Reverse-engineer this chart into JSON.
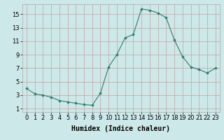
{
  "x": [
    0,
    1,
    2,
    3,
    4,
    5,
    6,
    7,
    8,
    9,
    10,
    11,
    12,
    13,
    14,
    15,
    16,
    17,
    18,
    19,
    20,
    21,
    22,
    23
  ],
  "y": [
    4.0,
    3.2,
    3.0,
    2.7,
    2.2,
    2.0,
    1.8,
    1.6,
    1.5,
    3.3,
    7.2,
    9.0,
    11.5,
    12.0,
    15.8,
    15.6,
    15.2,
    14.5,
    11.2,
    8.7,
    7.2,
    6.8,
    6.3,
    7.0
  ],
  "line_color": "#2e7d6e",
  "marker": "D",
  "marker_size": 1.8,
  "bg_color": "#cce8e8",
  "grid_color": "#c8a0a0",
  "xlabel": "Humidex (Indice chaleur)",
  "xlabel_fontsize": 7,
  "yticks": [
    1,
    3,
    5,
    7,
    9,
    11,
    13,
    15
  ],
  "ylim": [
    0.5,
    16.5
  ],
  "xlim": [
    -0.5,
    23.5
  ],
  "xticks": [
    0,
    1,
    2,
    3,
    4,
    5,
    6,
    7,
    8,
    9,
    10,
    11,
    12,
    13,
    14,
    15,
    16,
    17,
    18,
    19,
    20,
    21,
    22,
    23
  ],
  "tick_fontsize": 6
}
